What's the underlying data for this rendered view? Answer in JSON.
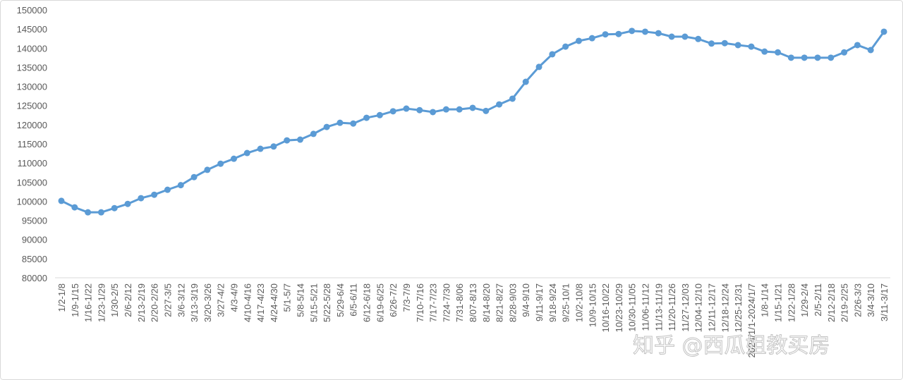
{
  "chart_data": {
    "type": "line",
    "categories": [
      "1/2-1/8",
      "1/9-1/15",
      "1/16-1/22",
      "1/23-1/29",
      "1/30-2/5",
      "2/6-2/12",
      "2/13-2/19",
      "2/20-2/26",
      "2/27-3/5",
      "3/6-3/12",
      "3/13-3/19",
      "3/20-3/26",
      "3/27-4/2",
      "4/3-4/9",
      "4/10-4/16",
      "4/17-4/23",
      "4/24-4/30",
      "5/1-5/7",
      "5/8-5/14",
      "5/15-5/21",
      "5/22-5/28",
      "5/29-6/4",
      "6/5-6/11",
      "6/12-6/18",
      "6/19-6/25",
      "6/26-7/2",
      "7/3-7/9",
      "7/10-7/16",
      "7/17-7/23",
      "7/24-7/30",
      "7/31-8/06",
      "8/07-8/13",
      "8/14-8/20",
      "8/21-8/27",
      "8/28-9/03",
      "9/4-9/10",
      "9/11-9/17",
      "9/18-9/24",
      "9/25-10/1",
      "10/2-10/8",
      "10/9-10/15",
      "10/16-10/22",
      "10/23-10/29",
      "10/30-11/05",
      "11/06-11/12",
      "11/13-11/19",
      "11/20-11/26",
      "11/27-12/03",
      "12/04-12/10",
      "12/11-12/17",
      "12/18-12/24",
      "12/25-12/31",
      "2024/1/1-2024/1/7",
      "1/8-1/14",
      "1/15-1/21",
      "1/22-1/28",
      "1/29-2/4",
      "2/5-2/11",
      "2/12-2/18",
      "2/19-2/25",
      "2/26-3/3",
      "3/4-3/10",
      "3/11-3/17"
    ],
    "series": [
      {
        "color": "#5b9bd5",
        "values": [
          100100,
          98400,
          97100,
          97100,
          98200,
          99300,
          100800,
          101700,
          103000,
          104200,
          106300,
          108200,
          109800,
          111100,
          112600,
          113700,
          114300,
          115900,
          116100,
          117600,
          119400,
          120500,
          120300,
          121800,
          122500,
          123500,
          124200,
          123800,
          123300,
          124000,
          124000,
          124400,
          123600,
          125300,
          126800,
          131200,
          135100,
          138400,
          140400,
          141900,
          142600,
          143600,
          143700,
          144500,
          144300,
          143900,
          143000,
          143000,
          142400,
          141200,
          141300,
          140800,
          140400,
          139100,
          138900,
          137500,
          137500,
          137500,
          137500,
          138900,
          140800,
          139500,
          144300
        ]
      }
    ],
    "ylim": [
      80000,
      150000
    ],
    "yticks": [
      80000,
      85000,
      90000,
      95000,
      100000,
      105000,
      110000,
      115000,
      120000,
      125000,
      130000,
      135000,
      140000,
      145000,
      150000
    ],
    "grid": false,
    "watermark": "知乎 @西瓜姐教买房"
  }
}
